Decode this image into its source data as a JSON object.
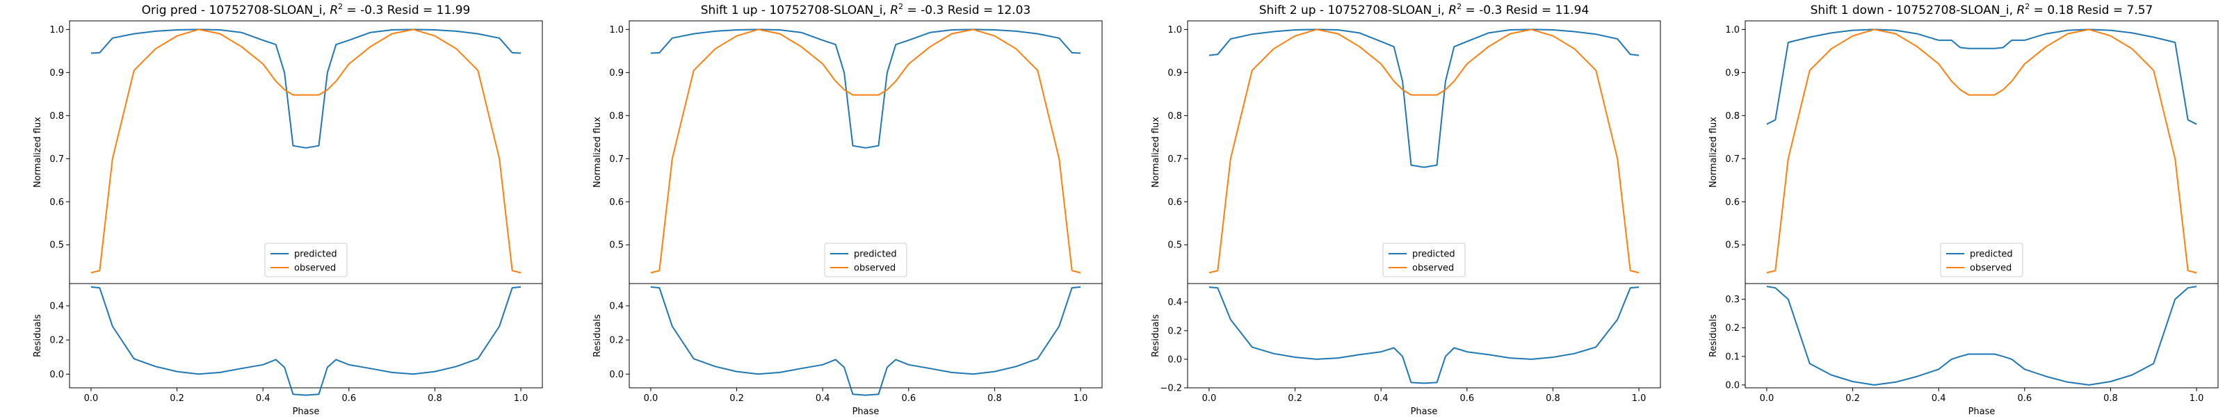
{
  "chart_data": [
    {
      "type": "line",
      "title": "Orig pred - 10752708-SLOAN_i, R² = -0.3 Resid = 11.99",
      "title_parts": {
        "prefix": "Orig pred - 10752708-SLOAN_i, ",
        "r2": "R",
        "r2_sup": "2",
        "suffix": " = -0.3 Resid = 11.99"
      },
      "xlabel": "Phase",
      "ylabel_top": "Normalized flux",
      "ylabel_bottom": "Residuals",
      "xlim": [
        -0.05,
        1.05
      ],
      "xticks": [
        "0.0",
        "0.2",
        "0.4",
        "0.6",
        "0.8",
        "1.0"
      ],
      "ylim_top": [
        0.41,
        1.02
      ],
      "yticks_top": [
        "0.5",
        "0.6",
        "0.7",
        "0.8",
        "0.9",
        "1.0"
      ],
      "ylim_bottom": [
        -0.08,
        0.53
      ],
      "yticks_bottom": [
        "0.0",
        "0.2",
        "0.4"
      ],
      "legend": "lower center",
      "colors": {
        "predicted": "#1f77b4",
        "observed": "#ff7f0e"
      },
      "x": [
        0.0,
        0.02,
        0.05,
        0.1,
        0.15,
        0.2,
        0.25,
        0.3,
        0.35,
        0.4,
        0.43,
        0.45,
        0.47,
        0.5,
        0.53,
        0.55,
        0.57,
        0.6,
        0.65,
        0.7,
        0.75,
        0.8,
        0.85,
        0.9,
        0.95,
        0.98,
        1.0
      ],
      "series": [
        {
          "name": "predicted",
          "values": [
            0.945,
            0.946,
            0.98,
            0.99,
            0.996,
            0.999,
            1.0,
            0.999,
            0.993,
            0.975,
            0.965,
            0.9,
            0.73,
            0.725,
            0.73,
            0.9,
            0.965,
            0.975,
            0.993,
            0.999,
            1.0,
            0.999,
            0.996,
            0.99,
            0.98,
            0.946,
            0.945
          ]
        },
        {
          "name": "observed",
          "values": [
            0.435,
            0.44,
            0.7,
            0.905,
            0.955,
            0.985,
            1.0,
            0.99,
            0.96,
            0.92,
            0.88,
            0.86,
            0.848,
            0.848,
            0.848,
            0.86,
            0.88,
            0.92,
            0.96,
            0.99,
            1.0,
            0.985,
            0.955,
            0.905,
            0.7,
            0.44,
            0.435
          ]
        }
      ],
      "residuals": [
        0.51,
        0.505,
        0.28,
        0.09,
        0.045,
        0.015,
        0.0,
        0.01,
        0.033,
        0.055,
        0.085,
        0.04,
        -0.118,
        -0.123,
        -0.118,
        0.04,
        0.085,
        0.055,
        0.033,
        0.01,
        0.0,
        0.015,
        0.045,
        0.09,
        0.28,
        0.505,
        0.51
      ]
    },
    {
      "type": "line",
      "title": "Shift 1 up - 10752708-SLOAN_i, R² = -0.3 Resid = 12.03",
      "title_parts": {
        "prefix": "Shift 1 up - 10752708-SLOAN_i, ",
        "r2": "R",
        "r2_sup": "2",
        "suffix": " = -0.3 Resid = 12.03"
      },
      "xlabel": "Phase",
      "ylabel_top": "Normalized flux",
      "ylabel_bottom": "Residuals",
      "xlim": [
        -0.05,
        1.05
      ],
      "xticks": [
        "0.0",
        "0.2",
        "0.4",
        "0.6",
        "0.8",
        "1.0"
      ],
      "ylim_top": [
        0.41,
        1.02
      ],
      "yticks_top": [
        "0.5",
        "0.6",
        "0.7",
        "0.8",
        "0.9",
        "1.0"
      ],
      "ylim_bottom": [
        -0.08,
        0.53
      ],
      "yticks_bottom": [
        "0.0",
        "0.2",
        "0.4"
      ],
      "legend": "lower center",
      "colors": {
        "predicted": "#1f77b4",
        "observed": "#ff7f0e"
      },
      "x": [
        0.0,
        0.02,
        0.05,
        0.1,
        0.15,
        0.2,
        0.25,
        0.3,
        0.35,
        0.4,
        0.43,
        0.45,
        0.47,
        0.5,
        0.53,
        0.55,
        0.57,
        0.6,
        0.65,
        0.7,
        0.75,
        0.8,
        0.85,
        0.9,
        0.95,
        0.98,
        1.0
      ],
      "series": [
        {
          "name": "predicted",
          "values": [
            0.945,
            0.946,
            0.98,
            0.99,
            0.996,
            0.999,
            1.0,
            0.999,
            0.993,
            0.975,
            0.965,
            0.9,
            0.73,
            0.725,
            0.73,
            0.9,
            0.965,
            0.975,
            0.993,
            0.999,
            1.0,
            0.999,
            0.996,
            0.99,
            0.98,
            0.946,
            0.945
          ]
        },
        {
          "name": "observed",
          "values": [
            0.435,
            0.44,
            0.7,
            0.905,
            0.955,
            0.985,
            1.0,
            0.99,
            0.96,
            0.92,
            0.88,
            0.86,
            0.848,
            0.848,
            0.848,
            0.86,
            0.88,
            0.92,
            0.96,
            0.99,
            1.0,
            0.985,
            0.955,
            0.905,
            0.7,
            0.44,
            0.435
          ]
        }
      ],
      "residuals": [
        0.51,
        0.505,
        0.28,
        0.09,
        0.045,
        0.015,
        0.0,
        0.01,
        0.033,
        0.055,
        0.085,
        0.04,
        -0.118,
        -0.123,
        -0.118,
        0.04,
        0.085,
        0.055,
        0.033,
        0.01,
        0.0,
        0.015,
        0.045,
        0.09,
        0.28,
        0.505,
        0.51
      ]
    },
    {
      "type": "line",
      "title": "Shift 2 up - 10752708-SLOAN_i, R² = -0.3 Resid = 11.94",
      "title_parts": {
        "prefix": "Shift 2 up - 10752708-SLOAN_i, ",
        "r2": "R",
        "r2_sup": "2",
        "suffix": " = -0.3 Resid = 11.94"
      },
      "xlabel": "Phase",
      "ylabel_top": "Normalized flux",
      "ylabel_bottom": "Residuals",
      "xlim": [
        -0.05,
        1.05
      ],
      "xticks": [
        "0.0",
        "0.2",
        "0.4",
        "0.6",
        "0.8",
        "1.0"
      ],
      "ylim_top": [
        0.41,
        1.02
      ],
      "yticks_top": [
        "0.5",
        "0.6",
        "0.7",
        "0.8",
        "0.9",
        "1.0"
      ],
      "ylim_bottom": [
        -0.2,
        0.53
      ],
      "yticks_bottom": [
        "−0.2",
        "0.0",
        "0.2",
        "0.4"
      ],
      "legend": "lower center",
      "colors": {
        "predicted": "#1f77b4",
        "observed": "#ff7f0e"
      },
      "x": [
        0.0,
        0.02,
        0.05,
        0.1,
        0.15,
        0.2,
        0.25,
        0.3,
        0.35,
        0.4,
        0.43,
        0.45,
        0.47,
        0.5,
        0.53,
        0.55,
        0.57,
        0.6,
        0.65,
        0.7,
        0.75,
        0.8,
        0.85,
        0.9,
        0.95,
        0.98,
        1.0
      ],
      "series": [
        {
          "name": "predicted",
          "values": [
            0.94,
            0.942,
            0.978,
            0.989,
            0.995,
            0.999,
            1.0,
            0.999,
            0.992,
            0.972,
            0.96,
            0.88,
            0.685,
            0.68,
            0.685,
            0.88,
            0.96,
            0.972,
            0.992,
            0.999,
            1.0,
            0.999,
            0.995,
            0.989,
            0.978,
            0.942,
            0.94
          ]
        },
        {
          "name": "observed",
          "values": [
            0.435,
            0.44,
            0.7,
            0.905,
            0.955,
            0.985,
            1.0,
            0.99,
            0.96,
            0.92,
            0.88,
            0.86,
            0.848,
            0.848,
            0.848,
            0.86,
            0.88,
            0.92,
            0.96,
            0.99,
            1.0,
            0.985,
            0.955,
            0.905,
            0.7,
            0.44,
            0.435
          ]
        }
      ],
      "residuals": [
        0.505,
        0.5,
        0.278,
        0.085,
        0.04,
        0.014,
        0.0,
        0.009,
        0.032,
        0.052,
        0.08,
        0.02,
        -0.163,
        -0.168,
        -0.163,
        0.02,
        0.08,
        0.052,
        0.032,
        0.009,
        0.0,
        0.014,
        0.04,
        0.085,
        0.278,
        0.5,
        0.505
      ]
    },
    {
      "type": "line",
      "title": "Shift 1 down - 10752708-SLOAN_i, R² = 0.18 Resid = 7.57",
      "title_parts": {
        "prefix": "Shift 1 down - 10752708-SLOAN_i, ",
        "r2": "R",
        "r2_sup": "2",
        "suffix": " = 0.18 Resid = 7.57"
      },
      "xlabel": "Phase",
      "ylabel_top": "Normalized flux",
      "ylabel_bottom": "Residuals",
      "xlim": [
        -0.05,
        1.05
      ],
      "xticks": [
        "0.0",
        "0.2",
        "0.4",
        "0.6",
        "0.8",
        "1.0"
      ],
      "ylim_top": [
        0.41,
        1.02
      ],
      "yticks_top": [
        "0.5",
        "0.6",
        "0.7",
        "0.8",
        "0.9",
        "1.0"
      ],
      "ylim_bottom": [
        -0.01,
        0.355
      ],
      "yticks_bottom": [
        "0.0",
        "0.1",
        "0.2",
        "0.3"
      ],
      "legend": "lower center",
      "colors": {
        "predicted": "#1f77b4",
        "observed": "#ff7f0e"
      },
      "x": [
        0.0,
        0.02,
        0.05,
        0.1,
        0.15,
        0.2,
        0.25,
        0.3,
        0.35,
        0.4,
        0.43,
        0.45,
        0.47,
        0.5,
        0.53,
        0.55,
        0.57,
        0.6,
        0.65,
        0.7,
        0.75,
        0.8,
        0.85,
        0.9,
        0.95,
        0.98,
        1.0
      ],
      "series": [
        {
          "name": "predicted",
          "values": [
            0.78,
            0.79,
            0.97,
            0.982,
            0.992,
            0.998,
            1.0,
            0.998,
            0.99,
            0.975,
            0.975,
            0.958,
            0.956,
            0.956,
            0.956,
            0.958,
            0.975,
            0.975,
            0.99,
            0.998,
            1.0,
            0.998,
            0.992,
            0.982,
            0.97,
            0.79,
            0.78
          ]
        },
        {
          "name": "observed",
          "values": [
            0.435,
            0.44,
            0.7,
            0.905,
            0.955,
            0.985,
            1.0,
            0.99,
            0.96,
            0.92,
            0.88,
            0.86,
            0.848,
            0.848,
            0.848,
            0.86,
            0.88,
            0.92,
            0.96,
            0.99,
            1.0,
            0.985,
            0.955,
            0.905,
            0.7,
            0.44,
            0.435
          ]
        }
      ],
      "residuals": [
        0.345,
        0.34,
        0.3,
        0.075,
        0.035,
        0.012,
        0.0,
        0.01,
        0.03,
        0.055,
        0.09,
        0.1,
        0.108,
        0.108,
        0.108,
        0.1,
        0.09,
        0.055,
        0.03,
        0.01,
        0.0,
        0.012,
        0.035,
        0.075,
        0.3,
        0.34,
        0.345
      ]
    }
  ]
}
